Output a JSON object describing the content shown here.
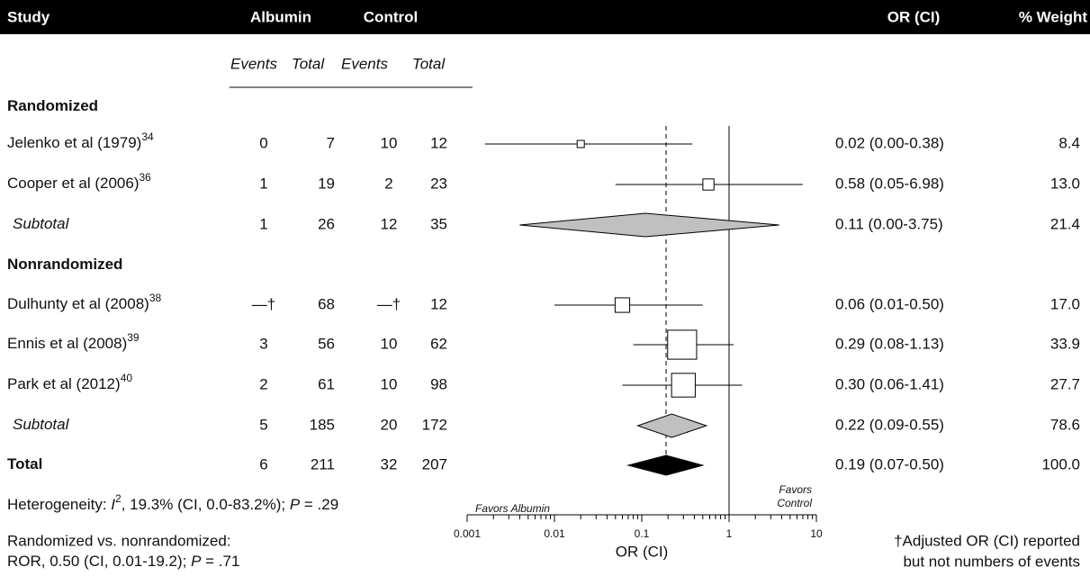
{
  "chart_data": {
    "type": "forest",
    "columns": {
      "study": "Study",
      "albumin": "Albumin",
      "control": "Control",
      "or": "OR (CI)",
      "weight": "% Weight"
    },
    "subcolumns": [
      "Events",
      "Total",
      "Events",
      "Total"
    ],
    "rows": [
      {
        "label": "Randomized",
        "kind": "group"
      },
      {
        "label": "Jelenko et al (1979)",
        "ref": "34",
        "kind": "study",
        "cells": [
          0,
          7,
          10,
          12
        ],
        "or": 0.02,
        "lo": 0.0016,
        "hi": 0.38,
        "ci_label": "0.02 (0.00-0.38)",
        "weight": 8.4
      },
      {
        "label": "Cooper et al (2006)",
        "ref": "36",
        "kind": "study",
        "cells": [
          1,
          19,
          2,
          23
        ],
        "or": 0.58,
        "lo": 0.05,
        "hi": 6.98,
        "ci_label": "0.58 (0.05-6.98)",
        "weight": 13.0,
        "weight_label": "13.0"
      },
      {
        "label": "Subtotal",
        "kind": "subtotal",
        "cells": [
          1,
          26,
          12,
          35
        ],
        "or": 0.11,
        "lo": 0.004,
        "hi": 3.75,
        "ci_label": "0.11 (0.00-3.75)",
        "weight": 21.4
      },
      {
        "label": "Nonrandomized",
        "kind": "group"
      },
      {
        "label": "Dulhunty et al (2008)",
        "ref": "38",
        "kind": "study",
        "cells": [
          "—†",
          68,
          "—†",
          12
        ],
        "or": 0.06,
        "lo": 0.01,
        "hi": 0.5,
        "ci_label": "0.06 (0.01-0.50)",
        "weight": 17.0,
        "weight_label": "17.0"
      },
      {
        "label": "Ennis et al (2008)",
        "ref": "39",
        "kind": "study",
        "cells": [
          3,
          56,
          10,
          62
        ],
        "or": 0.29,
        "lo": 0.08,
        "hi": 1.13,
        "ci_label": "0.29 (0.08-1.13)",
        "weight": 33.9
      },
      {
        "label": "Park et al (2012)",
        "ref": "40",
        "kind": "study",
        "cells": [
          2,
          61,
          10,
          98
        ],
        "or": 0.3,
        "lo": 0.06,
        "hi": 1.41,
        "ci_label": "0.30 (0.06-1.41)",
        "weight": 27.7
      },
      {
        "label": "Subtotal",
        "kind": "subtotal",
        "cells": [
          5,
          185,
          20,
          172
        ],
        "or": 0.22,
        "lo": 0.09,
        "hi": 0.55,
        "ci_label": "0.22 (0.09-0.55)",
        "weight": 78.6
      },
      {
        "label": "Total",
        "kind": "total",
        "cells": [
          6,
          211,
          32,
          207
        ],
        "or": 0.19,
        "lo": 0.07,
        "hi": 0.5,
        "ci_label": "0.19 (0.07-0.50)",
        "weight": 100.0,
        "weight_label": "100.0"
      }
    ],
    "square_color": "#ffffff",
    "subtotal_color": "#c0c0c0",
    "total_color": "#000000",
    "log_x": true,
    "xlim": [
      0.001,
      10
    ],
    "xticks": [
      0.001,
      0.01,
      0.1,
      1,
      10
    ],
    "xminorticks": [
      0.002,
      0.003,
      0.004,
      0.005,
      0.006,
      0.007,
      0.008,
      0.009,
      0.02,
      0.03,
      0.04,
      0.05,
      0.06,
      0.07,
      0.08,
      0.09,
      0.2,
      0.3,
      0.4,
      0.5,
      0.6,
      0.7,
      0.8,
      0.9,
      2,
      3,
      4,
      5,
      6,
      7,
      8,
      9
    ],
    "reference_line": 1,
    "xlabel": "OR (CI)",
    "favors_left": "Favors Albumin",
    "favors_right": [
      "Favors",
      "Control"
    ],
    "heterogeneity": [
      "Heterogeneity: ",
      "I",
      "2",
      ", 19.3% (CI, 0.0-83.2%); ",
      "P",
      " = .29"
    ],
    "comparison": [
      "Randomized vs. nonrandomized:",
      "ROR, 0.50 (CI, 0.01-19.2); ",
      "P",
      " = .71"
    ],
    "footnote": [
      "†Adjusted OR (CI) reported",
      "but not numbers of events"
    ]
  }
}
